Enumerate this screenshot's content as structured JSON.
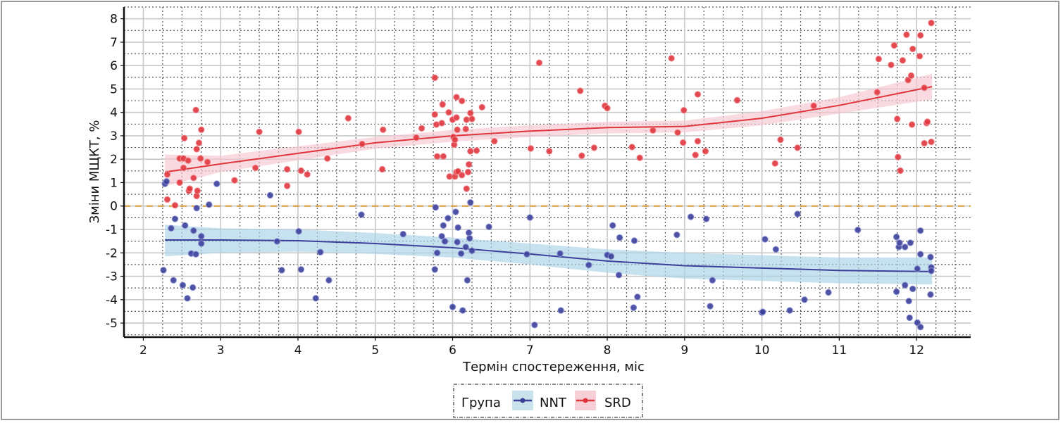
{
  "chart_data": {
    "type": "scatter",
    "title": "",
    "xlabel": "Термін спостереження, міс",
    "ylabel": "Зміни МЩКТ, %",
    "xlim": [
      1.75,
      12.7
    ],
    "ylim": [
      -5.6,
      8.5
    ],
    "xticks": [
      2,
      3,
      4,
      5,
      6,
      7,
      8,
      9,
      10,
      11,
      12
    ],
    "yticks": [
      8,
      7,
      6,
      5,
      4,
      3,
      2,
      1,
      0,
      -1,
      -2,
      -3,
      -4,
      -5
    ],
    "grid": true,
    "reference_line": {
      "y": 0,
      "style": "dashed",
      "color": "#d9a441"
    },
    "legend": {
      "title": "Група",
      "placement": "bottom-center",
      "entries": [
        "NNT",
        "SRD"
      ]
    },
    "series": [
      {
        "name": "NNT",
        "color": "#3b3f9a",
        "band_color": "#a9d3e6",
        "trend": {
          "x": [
            2.28,
            3,
            4,
            5,
            6,
            7,
            8,
            9,
            10,
            11,
            12.2
          ],
          "y": [
            -1.45,
            -1.45,
            -1.48,
            -1.6,
            -1.78,
            -2.05,
            -2.35,
            -2.55,
            -2.65,
            -2.75,
            -2.8
          ],
          "lower": [
            -2.15,
            -2.0,
            -1.95,
            -2.05,
            -2.2,
            -2.5,
            -2.85,
            -3.1,
            -3.2,
            -3.3,
            -3.35
          ],
          "upper": [
            -0.8,
            -0.95,
            -1.0,
            -1.15,
            -1.35,
            -1.6,
            -1.85,
            -2.0,
            -2.1,
            -2.2,
            -2.2
          ]
        },
        "points": [
          [
            2.26,
            -2.74
          ],
          [
            2.28,
            0.95
          ],
          [
            2.3,
            1.05
          ],
          [
            2.36,
            -0.95
          ],
          [
            2.39,
            -3.17
          ],
          [
            2.41,
            -0.55
          ],
          [
            2.51,
            -3.38
          ],
          [
            2.54,
            -0.83
          ],
          [
            2.57,
            -3.94
          ],
          [
            2.62,
            -2.03
          ],
          [
            2.64,
            -3.48
          ],
          [
            2.65,
            -1.05
          ],
          [
            2.68,
            -2.06
          ],
          [
            2.69,
            -0.09
          ],
          [
            2.75,
            -1.29
          ],
          [
            2.75,
            -1.6
          ],
          [
            2.85,
            0.06
          ],
          [
            2.95,
            0.95
          ],
          [
            3.64,
            0.46
          ],
          [
            3.73,
            -1.51
          ],
          [
            3.79,
            -2.74
          ],
          [
            4.01,
            -1.08
          ],
          [
            4.04,
            -2.71
          ],
          [
            4.23,
            -3.94
          ],
          [
            4.29,
            -1.97
          ],
          [
            4.4,
            -3.17
          ],
          [
            4.82,
            -0.37
          ],
          [
            5.36,
            -1.2
          ],
          [
            5.77,
            -2.71
          ],
          [
            5.78,
            -0.06
          ],
          [
            5.8,
            -2.0
          ],
          [
            5.86,
            -1.29
          ],
          [
            5.88,
            -0.83
          ],
          [
            5.9,
            -1.51
          ],
          [
            5.94,
            -0.52
          ],
          [
            6.0,
            -4.31
          ],
          [
            6.04,
            -0.25
          ],
          [
            6.06,
            -1.54
          ],
          [
            6.07,
            -0.92
          ],
          [
            6.11,
            -2.03
          ],
          [
            6.13,
            -4.46
          ],
          [
            6.17,
            -1.75
          ],
          [
            6.19,
            -3.17
          ],
          [
            6.21,
            -1.14
          ],
          [
            6.22,
            -1.38
          ],
          [
            6.23,
            0.15
          ],
          [
            6.25,
            -1.91
          ],
          [
            6.47,
            -0.89
          ],
          [
            6.96,
            -2.06
          ],
          [
            7.0,
            -0.49
          ],
          [
            7.06,
            -5.08
          ],
          [
            7.39,
            -2.03
          ],
          [
            7.4,
            -4.46
          ],
          [
            7.76,
            -2.52
          ],
          [
            8.0,
            -2.09
          ],
          [
            8.05,
            -2.15
          ],
          [
            8.07,
            -0.83
          ],
          [
            8.15,
            -2.95
          ],
          [
            8.16,
            -1.35
          ],
          [
            8.34,
            -4.34
          ],
          [
            8.35,
            -1.48
          ],
          [
            8.39,
            -3.88
          ],
          [
            8.9,
            -1.23
          ],
          [
            9.08,
            -0.46
          ],
          [
            9.28,
            -0.55
          ],
          [
            9.33,
            -4.28
          ],
          [
            9.36,
            -3.17
          ],
          [
            10.0,
            -4.55
          ],
          [
            10.01,
            -4.52
          ],
          [
            10.04,
            -1.42
          ],
          [
            10.18,
            -1.85
          ],
          [
            10.36,
            -4.46
          ],
          [
            10.46,
            -0.34
          ],
          [
            10.55,
            -4.0
          ],
          [
            10.86,
            -3.69
          ],
          [
            11.24,
            -1.02
          ],
          [
            11.74,
            -1.32
          ],
          [
            11.74,
            -3.66
          ],
          [
            11.77,
            -1.75
          ],
          [
            11.78,
            -1.57
          ],
          [
            11.85,
            -1.75
          ],
          [
            11.85,
            -3.38
          ],
          [
            11.9,
            -4.06
          ],
          [
            11.91,
            -4.77
          ],
          [
            11.92,
            -1.57
          ],
          [
            11.95,
            -3.54
          ],
          [
            12.01,
            -2.68
          ],
          [
            12.01,
            -4.98
          ],
          [
            12.05,
            -1.05
          ],
          [
            12.05,
            -2.06
          ],
          [
            12.05,
            -5.17
          ],
          [
            12.18,
            -2.18
          ],
          [
            12.18,
            -3.78
          ],
          [
            12.19,
            -2.62
          ],
          [
            12.19,
            -2.77
          ]
        ]
      },
      {
        "name": "SRD",
        "color": "#e0353d",
        "band_color": "#f6c6d0",
        "trend": {
          "x": [
            2.28,
            3,
            4,
            5,
            6,
            7,
            8,
            9,
            10,
            11,
            12.2
          ],
          "y": [
            1.45,
            1.8,
            2.25,
            2.7,
            3.0,
            3.2,
            3.35,
            3.4,
            3.75,
            4.3,
            5.1
          ],
          "lower": [
            0.85,
            1.45,
            1.95,
            2.45,
            2.75,
            2.95,
            3.1,
            3.15,
            3.45,
            3.95,
            4.55
          ],
          "upper": [
            2.2,
            2.15,
            2.55,
            2.95,
            3.25,
            3.45,
            3.6,
            3.65,
            4.05,
            4.65,
            5.65
          ]
        },
        "points": [
          [
            2.31,
            1.35
          ],
          [
            2.31,
            0.28
          ],
          [
            2.41,
            0.03
          ],
          [
            2.47,
            2.03
          ],
          [
            2.47,
            1.0
          ],
          [
            2.52,
            2.03
          ],
          [
            2.52,
            1.63
          ],
          [
            2.53,
            2.9
          ],
          [
            2.58,
            1.94
          ],
          [
            2.59,
            0.65
          ],
          [
            2.6,
            0.74
          ],
          [
            2.65,
            1.2
          ],
          [
            2.68,
            4.1
          ],
          [
            2.69,
            2.43
          ],
          [
            2.69,
            0.43
          ],
          [
            2.7,
            0.65
          ],
          [
            2.72,
            2.7
          ],
          [
            2.74,
            2.03
          ],
          [
            2.75,
            3.26
          ],
          [
            2.83,
            1.88
          ],
          [
            3.18,
            1.1
          ],
          [
            3.45,
            1.63
          ],
          [
            3.5,
            3.17
          ],
          [
            3.86,
            1.57
          ],
          [
            3.86,
            0.86
          ],
          [
            4.01,
            3.17
          ],
          [
            4.04,
            1.51
          ],
          [
            4.12,
            1.35
          ],
          [
            4.38,
            2.03
          ],
          [
            4.65,
            3.75
          ],
          [
            4.83,
            2.65
          ],
          [
            5.09,
            1.57
          ],
          [
            5.1,
            3.26
          ],
          [
            5.53,
            2.92
          ],
          [
            5.6,
            3.32
          ],
          [
            5.77,
            5.48
          ],
          [
            5.77,
            3.91
          ],
          [
            5.79,
            3.48
          ],
          [
            5.8,
            2.12
          ],
          [
            5.86,
            3.54
          ],
          [
            5.87,
            4.34
          ],
          [
            5.88,
            2.12
          ],
          [
            5.95,
            4.0
          ],
          [
            5.96,
            1.26
          ],
          [
            6.0,
            3.69
          ],
          [
            6.01,
            2.95
          ],
          [
            6.02,
            2.62
          ],
          [
            6.03,
            2.83
          ],
          [
            6.03,
            1.26
          ],
          [
            6.05,
            3.78
          ],
          [
            6.05,
            4.65
          ],
          [
            6.05,
            1.45
          ],
          [
            6.06,
            3.26
          ],
          [
            6.07,
            1.48
          ],
          [
            6.12,
            4.49
          ],
          [
            6.12,
            1.32
          ],
          [
            6.17,
            3.29
          ],
          [
            6.18,
            3.69
          ],
          [
            6.18,
            0.74
          ],
          [
            6.2,
            1.45
          ],
          [
            6.21,
            1.78
          ],
          [
            6.23,
            3.97
          ],
          [
            6.23,
            2.34
          ],
          [
            6.25,
            3.72
          ],
          [
            6.31,
            2.37
          ],
          [
            6.38,
            4.22
          ],
          [
            6.54,
            2.77
          ],
          [
            7.01,
            2.46
          ],
          [
            7.12,
            6.12
          ],
          [
            7.25,
            2.34
          ],
          [
            7.65,
            4.92
          ],
          [
            7.67,
            2.15
          ],
          [
            7.83,
            2.49
          ],
          [
            7.97,
            4.28
          ],
          [
            8.0,
            4.18
          ],
          [
            8.32,
            2.52
          ],
          [
            8.42,
            2.06
          ],
          [
            8.59,
            3.23
          ],
          [
            8.83,
            6.31
          ],
          [
            8.91,
            3.14
          ],
          [
            8.98,
            2.71
          ],
          [
            8.99,
            4.09
          ],
          [
            9.14,
            2.18
          ],
          [
            9.17,
            4.77
          ],
          [
            9.17,
            2.77
          ],
          [
            9.27,
            2.34
          ],
          [
            9.68,
            4.52
          ],
          [
            10.17,
            1.82
          ],
          [
            10.24,
            2.83
          ],
          [
            10.46,
            2.49
          ],
          [
            10.67,
            4.28
          ],
          [
            11.49,
            4.86
          ],
          [
            11.51,
            6.28
          ],
          [
            11.67,
            6.03
          ],
          [
            11.71,
            6.86
          ],
          [
            11.75,
            3.72
          ],
          [
            11.76,
            2.09
          ],
          [
            11.79,
            1.51
          ],
          [
            11.82,
            6.22
          ],
          [
            11.87,
            7.32
          ],
          [
            11.89,
            5.38
          ],
          [
            11.93,
            5.57
          ],
          [
            11.94,
            3.48
          ],
          [
            11.95,
            6.71
          ],
          [
            12.04,
            6.4
          ],
          [
            12.05,
            7.29
          ],
          [
            12.1,
            5.05
          ],
          [
            12.1,
            2.68
          ],
          [
            12.13,
            3.54
          ],
          [
            12.14,
            3.6
          ],
          [
            12.19,
            7.82
          ],
          [
            12.19,
            2.74
          ]
        ]
      }
    ]
  }
}
